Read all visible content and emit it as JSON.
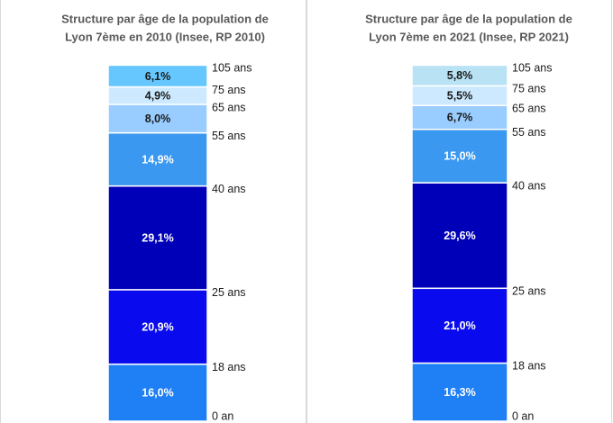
{
  "chart_data": [
    {
      "type": "stacked-bar",
      "title": [
        "Structure par âge de la population de",
        "Lyon 7ème en 2010 (Insee, RP 2010)"
      ],
      "ylim": [
        0,
        100
      ],
      "boundary_labels": [
        "0 an",
        "18 ans",
        "25 ans",
        "40 ans",
        "55 ans",
        "65 ans",
        "75 ans",
        "105 ans"
      ],
      "series": [
        {
          "color": "#1f7ff5",
          "values": [
            16.0
          ],
          "value_labels": [
            "16,0%"
          ]
        },
        {
          "color": "#0a0aee",
          "values": [
            20.9
          ],
          "value_labels": [
            "20,9%"
          ]
        },
        {
          "color": "#0000b8",
          "values": [
            29.1
          ],
          "value_labels": [
            "29,1%"
          ]
        },
        {
          "color": "#3b98f0",
          "values": [
            14.9
          ],
          "value_labels": [
            "14,9%"
          ]
        },
        {
          "color": "#99ccff",
          "values": [
            8.0
          ],
          "value_labels": [
            "8,0%"
          ]
        },
        {
          "color": "#cce9ff",
          "values": [
            4.9
          ],
          "value_labels": [
            "4,9%"
          ]
        },
        {
          "color": "#66c7ff",
          "values": [
            6.1
          ],
          "value_labels": [
            "6,1%"
          ]
        }
      ]
    },
    {
      "type": "stacked-bar",
      "title": [
        "Structure par âge de la population de",
        "Lyon 7ème en 2021 (Insee, RP 2021)"
      ],
      "ylim": [
        0,
        100
      ],
      "boundary_labels": [
        "0 an",
        "18 ans",
        "25 ans",
        "40 ans",
        "55 ans",
        "65 ans",
        "75 ans",
        "105 ans"
      ],
      "series": [
        {
          "color": "#1f7ff5",
          "values": [
            16.3
          ],
          "value_labels": [
            "16,3%"
          ]
        },
        {
          "color": "#0a0aee",
          "values": [
            21.0
          ],
          "value_labels": [
            "21,0%"
          ]
        },
        {
          "color": "#0000b8",
          "values": [
            29.6
          ],
          "value_labels": [
            "29,6%"
          ]
        },
        {
          "color": "#3b98f0",
          "values": [
            15.0
          ],
          "value_labels": [
            "15,0%"
          ]
        },
        {
          "color": "#99ccff",
          "values": [
            6.7
          ],
          "value_labels": [
            "6,7%"
          ]
        },
        {
          "color": "#cce9ff",
          "values": [
            5.5
          ],
          "value_labels": [
            "5,5%"
          ]
        },
        {
          "color": "#b9e3f5",
          "values": [
            5.8
          ],
          "value_labels": [
            "5,8%"
          ]
        }
      ]
    }
  ]
}
